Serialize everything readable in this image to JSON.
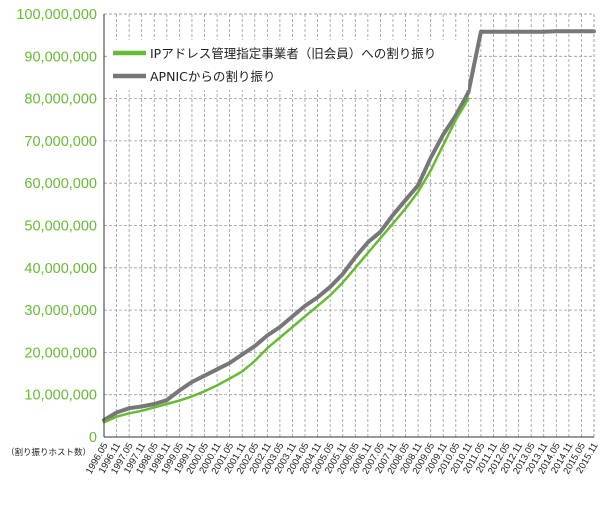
{
  "chart_data": {
    "type": "line",
    "ylabel": "（割り振りホスト数）",
    "ylim": [
      0,
      100000000
    ],
    "y_ticks": [
      "0",
      "10,000,000",
      "20,000,000",
      "30,000,000",
      "40,000,000",
      "50,000,000",
      "60,000,000",
      "70,000,000",
      "80,000,000",
      "90,000,000",
      "100,000,000"
    ],
    "x_ticks": [
      "1996.05",
      "1996.11",
      "1997.05",
      "1997.11",
      "1998.05",
      "1998.11",
      "1999.05",
      "1999.11",
      "2000.05",
      "2000.11",
      "2001.05",
      "2001.11",
      "2002.05",
      "2002.11",
      "2003.05",
      "2003.11",
      "2004.05",
      "2004.11",
      "2005.05",
      "2005.11",
      "2006.05",
      "2006.11",
      "2007.05",
      "2007.11",
      "2008.05",
      "2008.11",
      "2009.05",
      "2009.11",
      "2010.05",
      "2010.11",
      "2011.05",
      "2011.11",
      "2012.05",
      "2012.11",
      "2013.05",
      "2013.11",
      "2014.05",
      "2014.11",
      "2015.05",
      "2015.11"
    ],
    "grid": true,
    "legend_position": "top-left",
    "series": [
      {
        "name": "IPアドレス管理指定事業者（旧会員）への割り振り",
        "color": "#66bb33",
        "values": [
          3500000,
          4800000,
          5600000,
          6200000,
          7000000,
          7800000,
          8600000,
          9600000,
          10800000,
          12200000,
          13800000,
          15500000,
          18000000,
          21000000,
          23500000,
          26000000,
          28500000,
          31000000,
          33500000,
          36500000,
          40000000,
          43500000,
          47000000,
          50500000,
          54000000,
          58000000,
          63000000,
          69000000,
          75000000,
          80000000,
          null,
          null,
          null,
          null,
          null,
          null,
          null,
          null,
          null,
          null
        ]
      },
      {
        "name": "APNICからの割り振り",
        "color": "#777777",
        "values": [
          4000000,
          5800000,
          6800000,
          7200000,
          7800000,
          8700000,
          11000000,
          13000000,
          14500000,
          16000000,
          17500000,
          19500000,
          21500000,
          24000000,
          26000000,
          28500000,
          31000000,
          33000000,
          35500000,
          38500000,
          42500000,
          46000000,
          48500000,
          52500000,
          56000000,
          59500000,
          66000000,
          71500000,
          76000000,
          81500000,
          95800000,
          95800000,
          95800000,
          95800000,
          95800000,
          95800000,
          95900000,
          95900000,
          95900000,
          95900000
        ]
      }
    ]
  }
}
